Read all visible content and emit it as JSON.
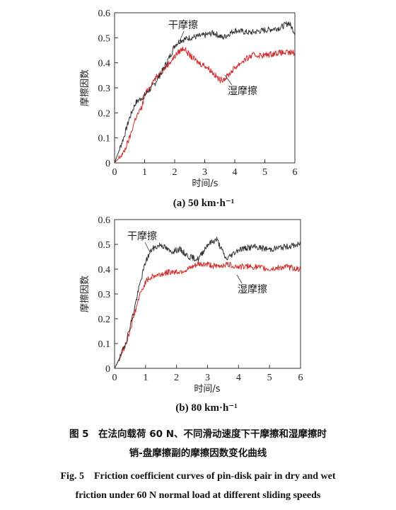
{
  "figure": {
    "caption_zh_line1": "图 5　在法向载荷 60 N、不同滑动速度下干摩擦和湿摩擦时",
    "caption_zh_line2": "销-盘摩擦副的摩擦因数变化曲线",
    "caption_en_line1": "Fig. 5　Friction coefficient curves of pin-disk pair in dry and wet",
    "caption_en_line2": "friction under 60 N normal load at different sliding speeds"
  },
  "chart_data": [
    {
      "type": "line",
      "subtitle": "(a) 50 km·h⁻¹",
      "xlabel": "时间/s",
      "ylabel": "摩擦因数",
      "xlim": [
        0,
        6
      ],
      "ylim": [
        0,
        0.6
      ],
      "xticks": [
        "0",
        "1",
        "2",
        "3",
        "4",
        "5",
        "6"
      ],
      "yticks": [
        "0",
        "0.1",
        "0.2",
        "0.3",
        "0.4",
        "0.5",
        "0.6"
      ],
      "grid": false,
      "series": [
        {
          "name": "干摩擦",
          "color": "#333333",
          "x": [
            0,
            0.3,
            0.5,
            0.7,
            1.0,
            1.3,
            1.6,
            1.9,
            2.0,
            2.2,
            2.5,
            3.0,
            3.3,
            3.6,
            4.0,
            4.5,
            5.0,
            5.5,
            5.8,
            6.0
          ],
          "y": [
            0.0,
            0.1,
            0.18,
            0.24,
            0.27,
            0.31,
            0.37,
            0.44,
            0.47,
            0.49,
            0.5,
            0.51,
            0.52,
            0.5,
            0.53,
            0.52,
            0.53,
            0.54,
            0.56,
            0.52
          ]
        },
        {
          "name": "湿摩擦",
          "color": "#d42a2a",
          "x": [
            0,
            0.3,
            0.5,
            0.7,
            0.9,
            1.0,
            1.3,
            1.6,
            1.9,
            2.1,
            2.3,
            2.5,
            2.8,
            3.0,
            3.2,
            3.5,
            3.7,
            4.0,
            4.3,
            4.6,
            5.0,
            5.4,
            5.8,
            6.0
          ],
          "y": [
            0.0,
            0.04,
            0.1,
            0.18,
            0.22,
            0.27,
            0.33,
            0.37,
            0.41,
            0.44,
            0.46,
            0.43,
            0.4,
            0.39,
            0.37,
            0.33,
            0.34,
            0.38,
            0.41,
            0.43,
            0.43,
            0.44,
            0.44,
            0.44
          ]
        }
      ]
    },
    {
      "type": "line",
      "subtitle": "(b) 80 km·h⁻¹",
      "xlabel": "时间/s",
      "ylabel": "摩擦因数",
      "xlim": [
        0,
        6
      ],
      "ylim": [
        0,
        0.6
      ],
      "xticks": [
        "0",
        "1",
        "2",
        "3",
        "4",
        "5",
        "6"
      ],
      "yticks": [
        "0",
        "0.1",
        "0.2",
        "0.3",
        "0.4",
        "0.5",
        "0.6"
      ],
      "grid": false,
      "series": [
        {
          "name": "干摩擦",
          "color": "#333333",
          "x": [
            0,
            0.2,
            0.4,
            0.6,
            0.8,
            1.0,
            1.2,
            1.5,
            1.8,
            2.1,
            2.4,
            2.7,
            3.0,
            3.3,
            3.6,
            4.0,
            4.5,
            5.0,
            5.5,
            6.0
          ],
          "y": [
            0.0,
            0.05,
            0.12,
            0.22,
            0.33,
            0.43,
            0.48,
            0.5,
            0.47,
            0.48,
            0.45,
            0.44,
            0.5,
            0.52,
            0.44,
            0.48,
            0.49,
            0.48,
            0.49,
            0.5
          ]
        },
        {
          "name": "湿摩擦",
          "color": "#d42a2a",
          "x": [
            0,
            0.2,
            0.4,
            0.6,
            0.8,
            1.0,
            1.2,
            1.5,
            1.8,
            2.1,
            2.4,
            2.7,
            3.0,
            3.3,
            3.6,
            4.0,
            4.5,
            5.0,
            5.5,
            6.0
          ],
          "y": [
            0.0,
            0.05,
            0.11,
            0.2,
            0.29,
            0.35,
            0.37,
            0.38,
            0.39,
            0.39,
            0.4,
            0.42,
            0.42,
            0.41,
            0.42,
            0.41,
            0.41,
            0.4,
            0.41,
            0.4
          ]
        }
      ]
    }
  ]
}
